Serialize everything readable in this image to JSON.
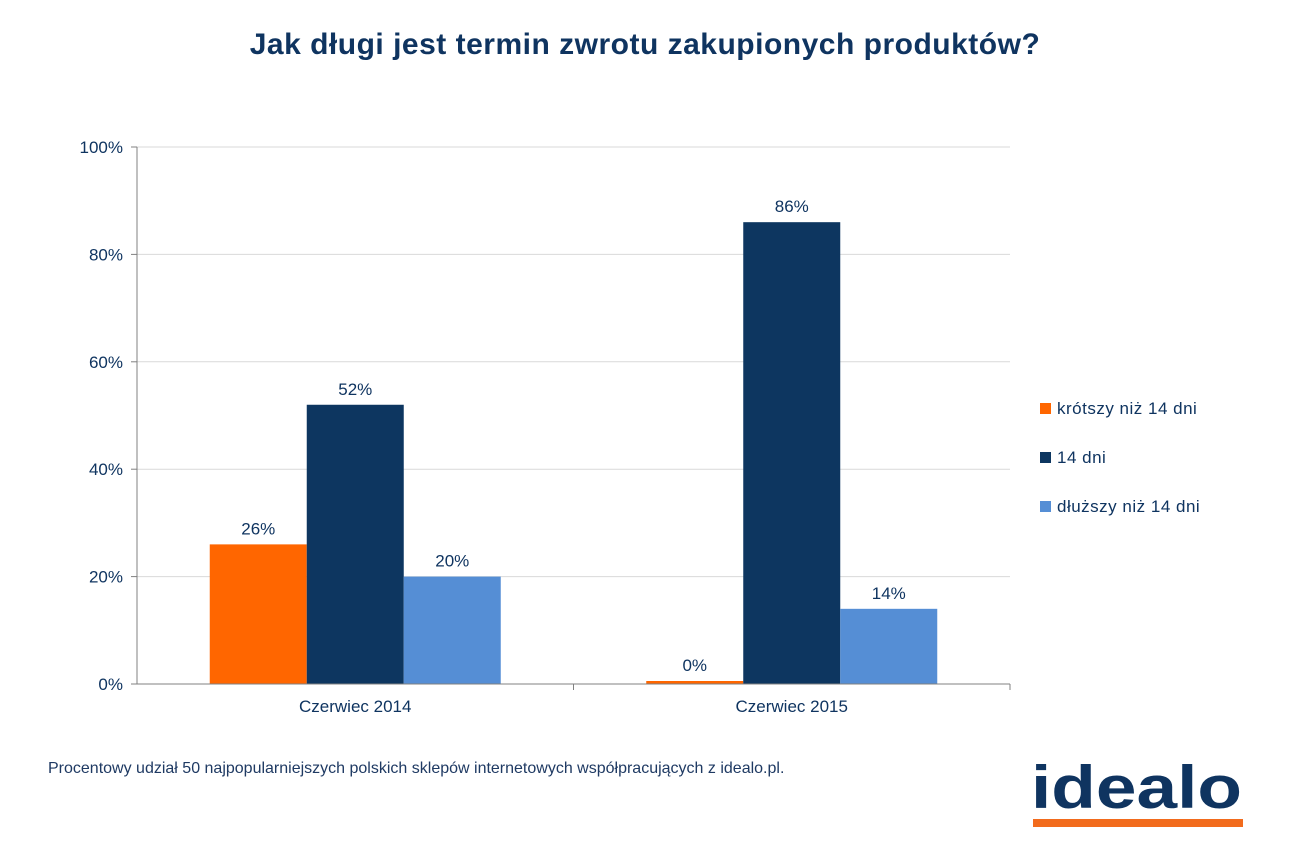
{
  "title": "Jak długi jest termin zwrotu zakupionych produktów?",
  "source_note": "Procentowy udział 50 najpopularniejszych polskich sklepów internetowych współpracujących z idealo.pl.",
  "logo": {
    "text": "idealo",
    "color": "#0f3460",
    "underline_color": "#f26b1d"
  },
  "chart_data": {
    "type": "bar",
    "categories": [
      "Czerwiec 2014",
      "Czerwiec 2015"
    ],
    "series": [
      {
        "name": "krótszy niż 14 dni",
        "values": [
          26,
          0
        ],
        "labels": [
          "26%",
          "0%"
        ],
        "color": "#ff6600"
      },
      {
        "name": "14 dni",
        "values": [
          52,
          86
        ],
        "labels": [
          "52%",
          "86%"
        ],
        "color": "#0d3660"
      },
      {
        "name": "dłuższy niż 14 dni",
        "values": [
          20,
          14
        ],
        "labels": [
          "20%",
          "14%"
        ],
        "color": "#558ed5"
      }
    ],
    "ylim": [
      0,
      100
    ],
    "yticks": [
      0,
      20,
      40,
      60,
      80,
      100
    ],
    "ytick_labels": [
      "0%",
      "20%",
      "40%",
      "60%",
      "80%",
      "100%"
    ],
    "grid": true,
    "legend_position": "right"
  }
}
